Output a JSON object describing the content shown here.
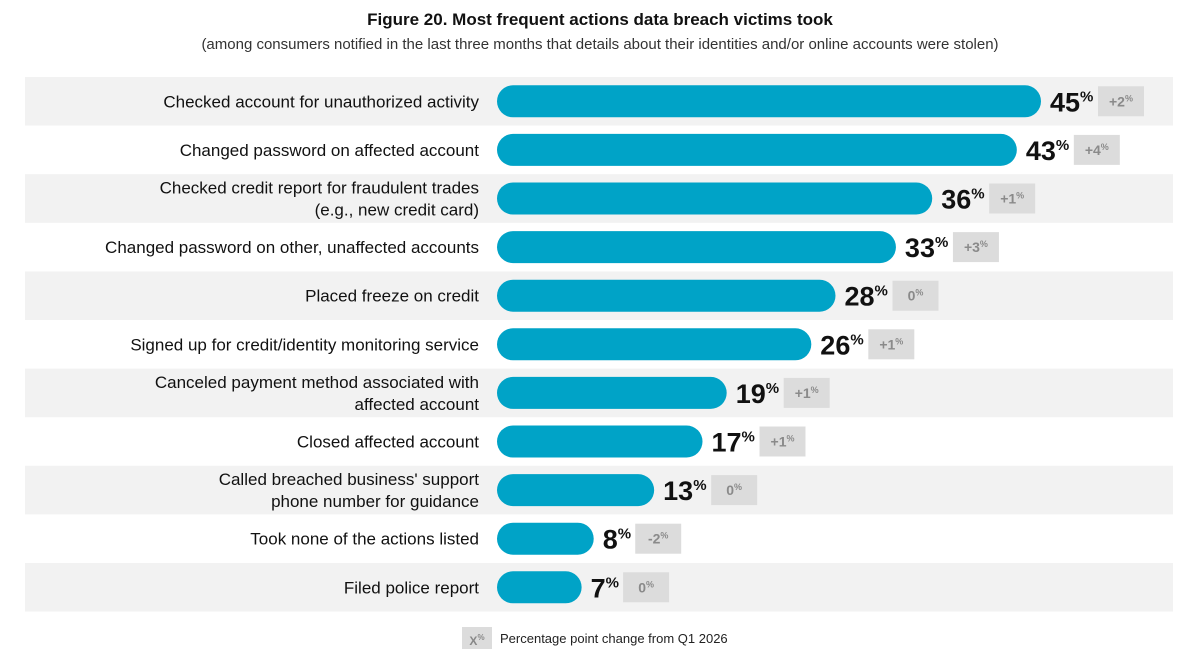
{
  "chart_data": {
    "type": "bar",
    "orientation": "horizontal",
    "title": "Figure 20. Most frequent actions data breach victims took",
    "subtitle": "(among consumers notified in the last three months that details about their identities and/or online accounts were stolen)",
    "categories": [
      [
        "Checked account for unauthorized activity"
      ],
      [
        "Changed password on affected account"
      ],
      [
        "Checked credit report for fraudulent trades",
        "(e.g., new credit card)"
      ],
      [
        "Changed password on other, unaffected accounts"
      ],
      [
        "Placed freeze on credit"
      ],
      [
        "Signed up for credit/identity monitoring service"
      ],
      [
        "Canceled payment method associated with",
        "affected account"
      ],
      [
        "Closed affected account"
      ],
      [
        "Called breached business' support",
        "phone number for guidance"
      ],
      [
        "Took none of the actions listed"
      ],
      [
        "Filed police report"
      ]
    ],
    "values": [
      45,
      43,
      36,
      33,
      28,
      26,
      19,
      17,
      13,
      8,
      7
    ],
    "changes": [
      "+2",
      "+4",
      "+1",
      "+3",
      "0",
      "+1",
      "+1",
      "+1",
      "0",
      "-2",
      "0"
    ],
    "unit": "%",
    "xlim": [
      0,
      45
    ],
    "bar_color": "#00a3c7",
    "band_color": "#f2f2f2",
    "change_box_color": "#dcdcdc",
    "legend": {
      "symbol": "X",
      "symbol_unit": "%",
      "text": "Percentage point change from Q1 2026"
    }
  }
}
